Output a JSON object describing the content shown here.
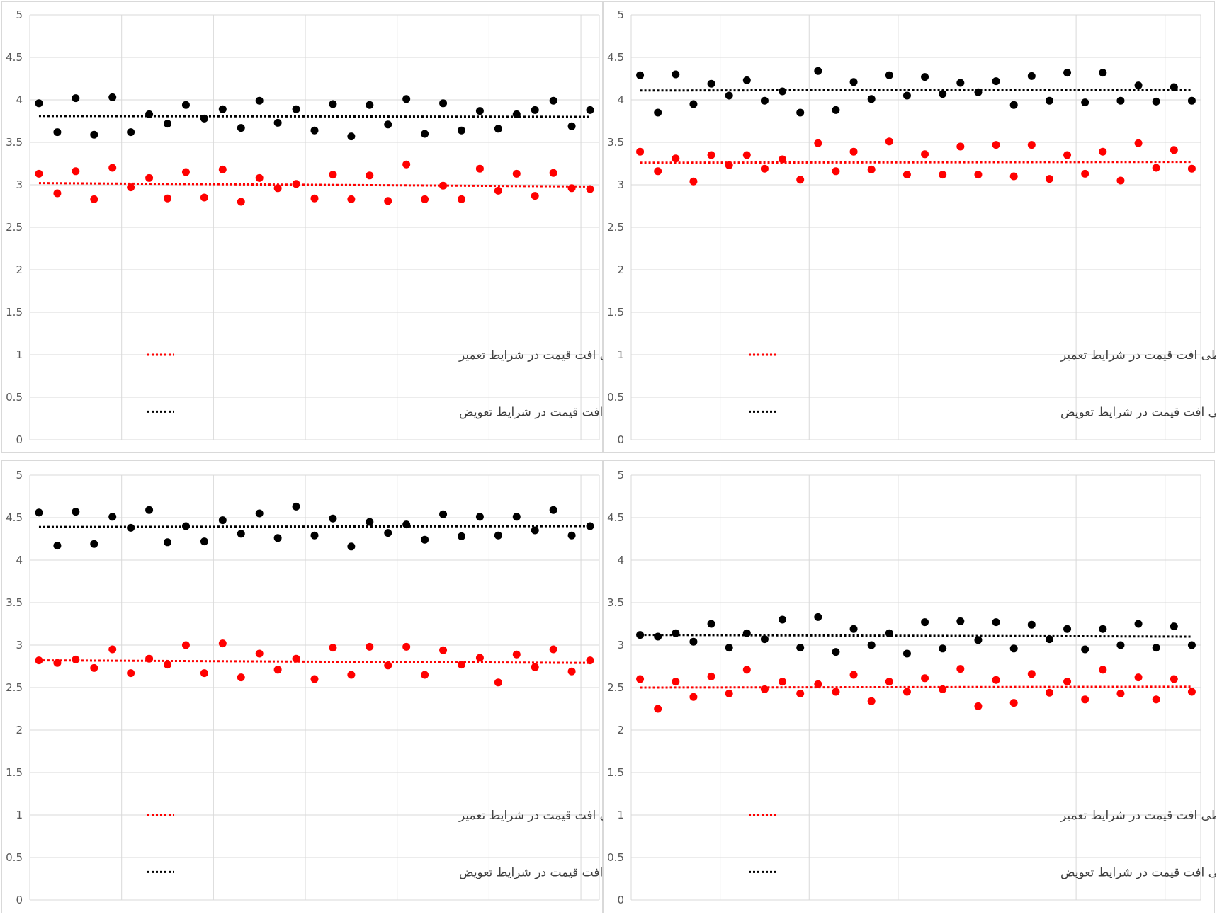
{
  "colors": {
    "repair": "#ff0000",
    "replace": "#000000",
    "grid": "#d9d9d9",
    "axis_text": "#595959"
  },
  "legend": {
    "repair_label": "رگرسیون خطی افت قیمت در شرایط تعمیر",
    "replace_label": "رگرسیون خطی افت قیمت در شرایط تعویض"
  },
  "chart_data": [
    {
      "type": "scatter",
      "ylim": [
        0,
        5
      ],
      "yticks": [
        "0",
        "0.5",
        "1",
        "1.5",
        "2",
        "2.5",
        "3",
        "3.5",
        "4",
        "4.5",
        "5"
      ],
      "grid": "vertical every 5 points",
      "x": [
        1,
        2,
        3,
        4,
        5,
        6,
        7,
        8,
        9,
        10,
        11,
        12,
        13,
        14,
        15,
        16,
        17,
        18,
        19,
        20,
        21,
        22,
        23,
        24,
        25,
        26,
        27,
        28,
        29,
        30,
        31
      ],
      "series": [
        {
          "key": "replace",
          "color": "#000000",
          "values": [
            3.96,
            3.62,
            4.02,
            3.59,
            4.03,
            3.62,
            3.83,
            3.72,
            3.94,
            3.78,
            3.89,
            3.67,
            3.99,
            3.73,
            3.89,
            3.64,
            3.95,
            3.57,
            3.94,
            3.71,
            4.01,
            3.6,
            3.96,
            3.64,
            3.87,
            3.66,
            3.83,
            3.88,
            3.99,
            3.69,
            3.88
          ],
          "trend": [
            3.81,
            3.8
          ]
        },
        {
          "key": "repair",
          "color": "#ff0000",
          "values": [
            3.13,
            2.9,
            3.16,
            2.83,
            3.2,
            2.97,
            3.08,
            2.84,
            3.15,
            2.85,
            3.18,
            2.8,
            3.08,
            2.96,
            3.01,
            2.84,
            3.12,
            2.83,
            3.11,
            2.81,
            3.24,
            2.83,
            2.99,
            2.83,
            3.19,
            2.93,
            3.13,
            2.87,
            3.14,
            2.96,
            2.95
          ],
          "trend": [
            3.02,
            2.98
          ]
        }
      ]
    },
    {
      "type": "scatter",
      "ylim": [
        0,
        5
      ],
      "yticks": [
        "0",
        "0.5",
        "1",
        "1.5",
        "2",
        "2.5",
        "3",
        "3.5",
        "4",
        "4.5",
        "5"
      ],
      "grid": "vertical every 5 points",
      "x": [
        1,
        2,
        3,
        4,
        5,
        6,
        7,
        8,
        9,
        10,
        11,
        12,
        13,
        14,
        15,
        16,
        17,
        18,
        19,
        20,
        21,
        22,
        23,
        24,
        25,
        26,
        27,
        28,
        29,
        30,
        31,
        32
      ],
      "series": [
        {
          "key": "replace",
          "color": "#000000",
          "values": [
            4.29,
            3.85,
            4.3,
            3.95,
            4.19,
            4.05,
            4.23,
            3.99,
            4.1,
            3.85,
            4.34,
            3.88,
            4.21,
            4.01,
            4.29,
            4.05,
            4.27,
            4.07,
            4.2,
            4.09,
            4.22,
            3.94,
            4.28,
            3.99,
            4.32,
            3.97,
            4.32,
            3.99,
            4.17,
            3.98,
            4.15,
            3.99
          ],
          "trend": [
            4.11,
            4.12
          ]
        },
        {
          "key": "repair",
          "color": "#ff0000",
          "values": [
            3.39,
            3.16,
            3.31,
            3.04,
            3.35,
            3.23,
            3.35,
            3.19,
            3.3,
            3.06,
            3.49,
            3.16,
            3.39,
            3.18,
            3.51,
            3.12,
            3.36,
            3.12,
            3.45,
            3.12,
            3.47,
            3.1,
            3.47,
            3.07,
            3.35,
            3.13,
            3.39,
            3.05,
            3.49,
            3.2,
            3.41,
            3.19
          ],
          "trend": [
            3.26,
            3.27
          ]
        }
      ]
    },
    {
      "type": "scatter",
      "ylim": [
        0,
        5
      ],
      "yticks": [
        "0",
        "0.5",
        "1",
        "1.5",
        "2",
        "2.5",
        "3",
        "3.5",
        "4",
        "4.5",
        "5"
      ],
      "grid": "vertical every 5 points",
      "x": [
        1,
        2,
        3,
        4,
        5,
        6,
        7,
        8,
        9,
        10,
        11,
        12,
        13,
        14,
        15,
        16,
        17,
        18,
        19,
        20,
        21,
        22,
        23,
        24,
        25,
        26,
        27,
        28,
        29,
        30,
        31
      ],
      "series": [
        {
          "key": "replace",
          "color": "#000000",
          "values": [
            4.56,
            4.17,
            4.57,
            4.19,
            4.51,
            4.38,
            4.59,
            4.21,
            4.4,
            4.22,
            4.47,
            4.31,
            4.55,
            4.26,
            4.63,
            4.29,
            4.49,
            4.16,
            4.45,
            4.32,
            4.42,
            4.24,
            4.54,
            4.28,
            4.51,
            4.29,
            4.51,
            4.35,
            4.59,
            4.29,
            4.4
          ],
          "trend": [
            4.39,
            4.4
          ]
        },
        {
          "key": "repair",
          "color": "#ff0000",
          "values": [
            2.82,
            2.79,
            2.83,
            2.73,
            2.95,
            2.67,
            2.84,
            2.77,
            3.0,
            2.67,
            3.02,
            2.62,
            2.9,
            2.71,
            2.84,
            2.6,
            2.97,
            2.65,
            2.98,
            2.76,
            2.98,
            2.65,
            2.94,
            2.77,
            2.85,
            2.56,
            2.89,
            2.74,
            2.95,
            2.69,
            2.82
          ],
          "trend": [
            2.82,
            2.79
          ]
        }
      ]
    },
    {
      "type": "scatter",
      "ylim": [
        0,
        5
      ],
      "yticks": [
        "0",
        "0.5",
        "1",
        "1.5",
        "2",
        "2.5",
        "3",
        "3.5",
        "4",
        "4.5",
        "5"
      ],
      "grid": "vertical every 5 points",
      "x": [
        1,
        2,
        3,
        4,
        5,
        6,
        7,
        8,
        9,
        10,
        11,
        12,
        13,
        14,
        15,
        16,
        17,
        18,
        19,
        20,
        21,
        22,
        23,
        24,
        25,
        26,
        27,
        28,
        29,
        30,
        31,
        32
      ],
      "series": [
        {
          "key": "replace",
          "color": "#000000",
          "values": [
            3.12,
            3.1,
            3.14,
            3.04,
            3.25,
            2.97,
            3.14,
            3.07,
            3.3,
            2.97,
            3.33,
            2.92,
            3.19,
            3.0,
            3.14,
            2.9,
            3.27,
            2.96,
            3.28,
            3.06,
            3.27,
            2.96,
            3.24,
            3.07,
            3.19,
            2.95,
            3.19,
            3.0,
            3.25,
            2.97,
            3.22,
            3.0
          ],
          "trend": [
            3.12,
            3.1
          ]
        },
        {
          "key": "repair",
          "color": "#ff0000",
          "values": [
            2.6,
            2.25,
            2.57,
            2.39,
            2.63,
            2.43,
            2.71,
            2.48,
            2.57,
            2.43,
            2.54,
            2.45,
            2.65,
            2.34,
            2.57,
            2.45,
            2.61,
            2.48,
            2.72,
            2.28,
            2.59,
            2.32,
            2.66,
            2.44,
            2.57,
            2.36,
            2.71,
            2.43,
            2.62,
            2.36,
            2.6,
            2.45
          ],
          "trend": [
            2.5,
            2.51
          ]
        }
      ]
    }
  ]
}
